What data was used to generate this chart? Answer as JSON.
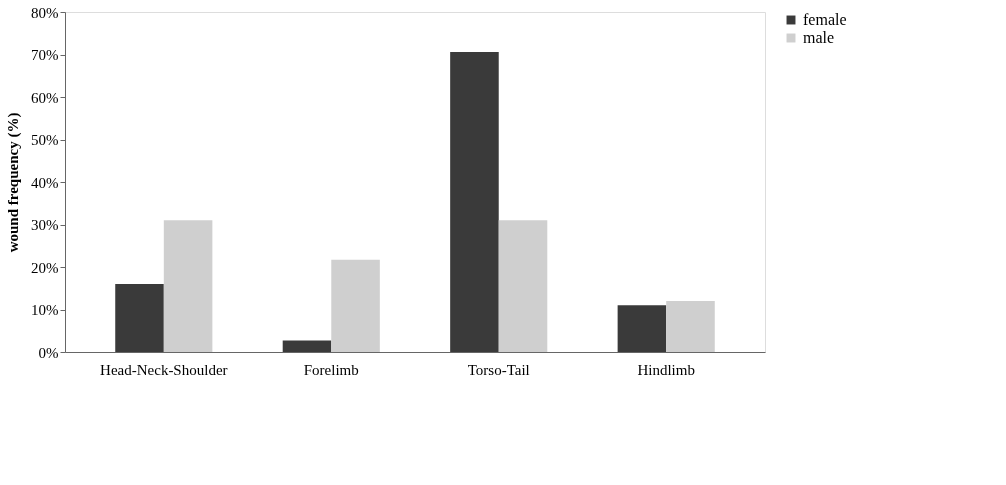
{
  "chart_data": {
    "type": "bar",
    "ylabel": "wound frequency (%)",
    "categories": [
      "Head-Neck-Shoulder",
      "Forelimb",
      "Torso-Tail",
      "Hindlimb"
    ],
    "series": [
      {
        "name": "female",
        "color": "#3a3a3a",
        "values": [
          16,
          2.7,
          70.6,
          11
        ]
      },
      {
        "name": "male",
        "color": "#cfcfcf",
        "values": [
          31,
          21.7,
          31,
          12
        ]
      }
    ],
    "ylim": [
      0,
      80
    ],
    "yticks": [
      {
        "value": 0,
        "label": "0%"
      },
      {
        "value": 10,
        "label": "10%"
      },
      {
        "value": 20,
        "label": "20%"
      },
      {
        "value": 30,
        "label": "30%"
      },
      {
        "value": 40,
        "label": "40%"
      },
      {
        "value": 50,
        "label": "50%"
      },
      {
        "value": 60,
        "label": "60%"
      },
      {
        "value": 70,
        "label": "70%"
      },
      {
        "value": 80,
        "label": "80%"
      }
    ],
    "grid": false,
    "legend": "right"
  }
}
